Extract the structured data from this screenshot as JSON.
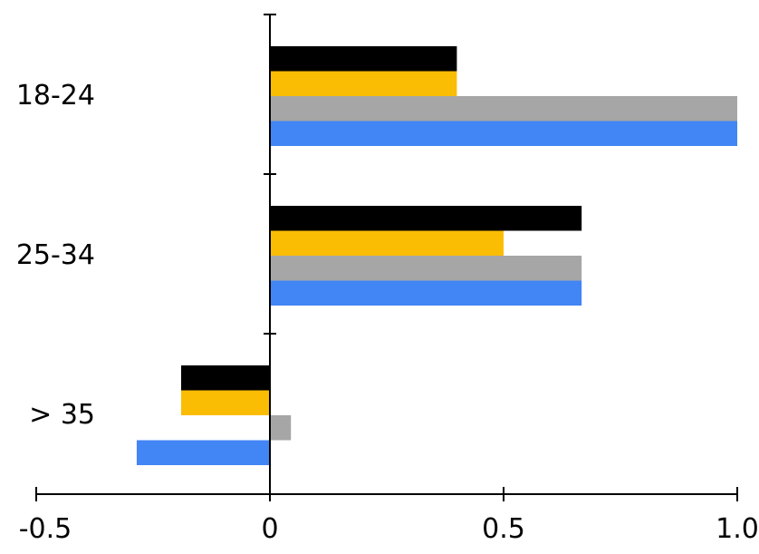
{
  "chart_data": {
    "type": "bar",
    "orientation": "horizontal",
    "categories": [
      "18-24",
      "25-34",
      "> 35"
    ],
    "x_tick_labels": [
      "-0.5",
      "0",
      "0.5",
      "1.0"
    ],
    "x_ticks": [
      -0.5,
      0,
      0.5,
      1.0
    ],
    "xlim": [
      -0.5,
      1.0
    ],
    "grid": false,
    "legend": "none",
    "title": "",
    "xlabel": "",
    "ylabel": "",
    "series": [
      {
        "color": "#000000",
        "values": [
          0.4,
          0.667,
          -0.19
        ]
      },
      {
        "color": "#fbbc04",
        "values": [
          0.4,
          0.5,
          -0.19
        ]
      },
      {
        "color": "#a6a6a6",
        "values": [
          1.0,
          0.667,
          0.045
        ]
      },
      {
        "color": "#4285f4",
        "values": [
          1.0,
          0.667,
          -0.285
        ]
      }
    ]
  }
}
